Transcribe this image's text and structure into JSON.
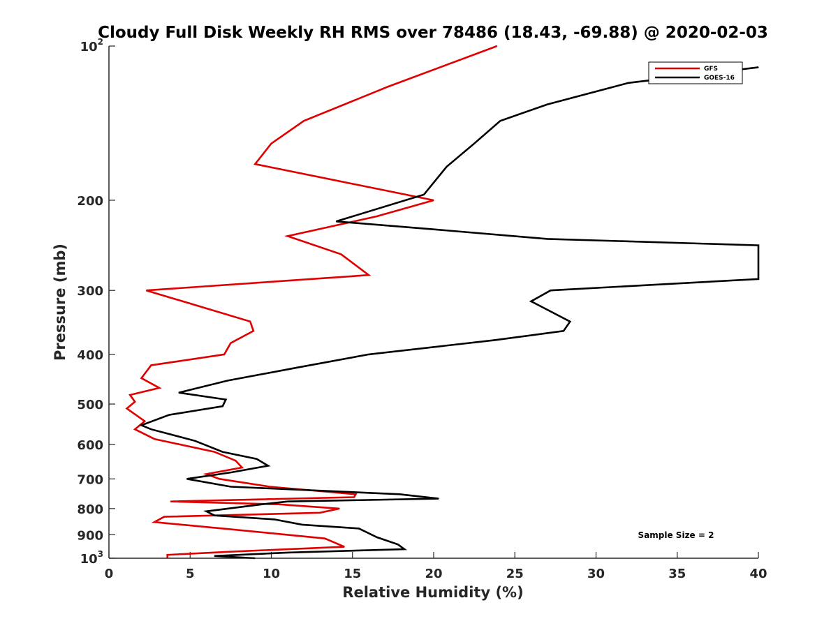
{
  "chart_data": {
    "type": "line",
    "title": "Cloudy Full Disk Weekly RH RMS over 78486 (18.43, -69.88) @ 2020-02-03",
    "xlabel": "Relative Humidity (%)",
    "ylabel": "Pressure (mb)",
    "xlim": [
      0,
      40
    ],
    "ylim": [
      100,
      1000
    ],
    "y_scale": "log",
    "y_reversed": true,
    "grid": false,
    "legend_position": "top-right",
    "annotation": "Sample Size = 2",
    "x_ticks": [
      "0",
      "5",
      "10",
      "15",
      "20",
      "25",
      "30",
      "35",
      "40"
    ],
    "y_ticks": [
      {
        "value": 100,
        "base": "10",
        "exp": "2"
      },
      {
        "value": 200,
        "base": "200",
        "exp": ""
      },
      {
        "value": 300,
        "base": "300",
        "exp": ""
      },
      {
        "value": 400,
        "base": "400",
        "exp": ""
      },
      {
        "value": 500,
        "base": "500",
        "exp": ""
      },
      {
        "value": 600,
        "base": "600",
        "exp": ""
      },
      {
        "value": 700,
        "base": "700",
        "exp": ""
      },
      {
        "value": 800,
        "base": "800",
        "exp": ""
      },
      {
        "value": 900,
        "base": "900",
        "exp": ""
      },
      {
        "value": 1000,
        "base": "10",
        "exp": "3"
      }
    ],
    "series": [
      {
        "name": "GFS",
        "color": "#e00000",
        "points": [
          [
            23.9,
            100
          ],
          [
            17.2,
            120
          ],
          [
            12.0,
            140
          ],
          [
            10.0,
            155
          ],
          [
            9.0,
            170
          ],
          [
            20.0,
            200
          ],
          [
            16.5,
            215
          ],
          [
            11.0,
            235
          ],
          [
            14.3,
            255
          ],
          [
            16.0,
            280
          ],
          [
            2.3,
            300
          ],
          [
            8.7,
            345
          ],
          [
            8.9,
            360
          ],
          [
            7.5,
            380
          ],
          [
            7.1,
            400
          ],
          [
            2.6,
            420
          ],
          [
            2.0,
            445
          ],
          [
            3.1,
            465
          ],
          [
            1.3,
            480
          ],
          [
            1.6,
            495
          ],
          [
            1.1,
            510
          ],
          [
            2.2,
            540
          ],
          [
            1.6,
            560
          ],
          [
            2.8,
            585
          ],
          [
            6.5,
            620
          ],
          [
            7.8,
            645
          ],
          [
            8.2,
            665
          ],
          [
            6.0,
            685
          ],
          [
            6.8,
            700
          ],
          [
            9.9,
            725
          ],
          [
            15.2,
            750
          ],
          [
            15.1,
            760
          ],
          [
            3.8,
            775
          ],
          [
            10.5,
            785
          ],
          [
            14.2,
            800
          ],
          [
            13.0,
            815
          ],
          [
            3.4,
            830
          ],
          [
            2.8,
            850
          ],
          [
            7.0,
            875
          ],
          [
            13.3,
            915
          ],
          [
            14.5,
            950
          ],
          [
            7.8,
            970
          ],
          [
            3.6,
            985
          ],
          [
            3.6,
            1000
          ]
        ]
      },
      {
        "name": "GOES-16",
        "color": "#000000",
        "points": [
          [
            40.0,
            110
          ],
          [
            32.0,
            118
          ],
          [
            27.0,
            130
          ],
          [
            24.1,
            140
          ],
          [
            22.5,
            155
          ],
          [
            20.8,
            172
          ],
          [
            19.4,
            195
          ],
          [
            14.0,
            220
          ],
          [
            20.0,
            228
          ],
          [
            27.0,
            238
          ],
          [
            40.0,
            245
          ],
          [
            40.0,
            285
          ],
          [
            27.2,
            300
          ],
          [
            26.0,
            315
          ],
          [
            28.4,
            345
          ],
          [
            28.0,
            360
          ],
          [
            23.8,
            375
          ],
          [
            16.0,
            400
          ],
          [
            11.5,
            425
          ],
          [
            7.3,
            450
          ],
          [
            4.3,
            475
          ],
          [
            7.2,
            490
          ],
          [
            7.0,
            505
          ],
          [
            3.7,
            525
          ],
          [
            2.0,
            550
          ],
          [
            2.6,
            560
          ],
          [
            5.3,
            590
          ],
          [
            7.0,
            620
          ],
          [
            9.1,
            640
          ],
          [
            9.8,
            660
          ],
          [
            7.5,
            680
          ],
          [
            4.8,
            700
          ],
          [
            7.5,
            725
          ],
          [
            17.9,
            750
          ],
          [
            20.3,
            765
          ],
          [
            11.0,
            775
          ],
          [
            9.4,
            785
          ],
          [
            6.0,
            810
          ],
          [
            6.5,
            825
          ],
          [
            10.2,
            840
          ],
          [
            11.9,
            860
          ],
          [
            15.4,
            875
          ],
          [
            16.5,
            910
          ],
          [
            17.8,
            940
          ],
          [
            18.2,
            960
          ],
          [
            11.0,
            975
          ],
          [
            6.5,
            990
          ],
          [
            9.0,
            1000
          ]
        ]
      }
    ]
  }
}
